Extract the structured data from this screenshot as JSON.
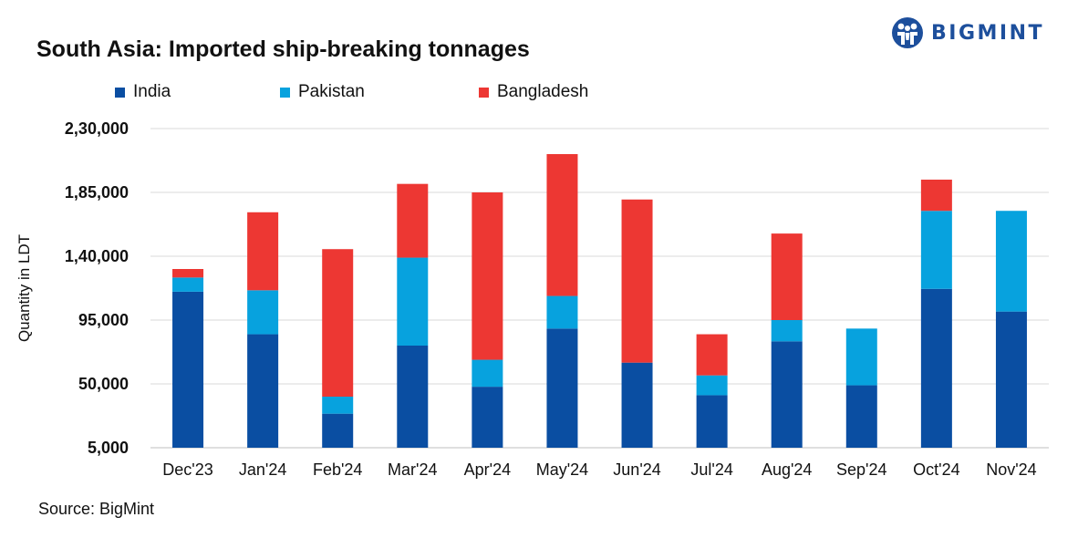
{
  "brand": {
    "name": "BIGMINT",
    "color": "#1d4f9c"
  },
  "source": "Source: BigMint",
  "chart_data": {
    "type": "bar",
    "stacked": true,
    "title": "South Asia: Imported ship-breaking tonnages",
    "xlabel": "",
    "ylabel": "Quantity in LDT",
    "ylim": [
      5000,
      230000
    ],
    "yticks": [
      5000,
      50000,
      95000,
      140000,
      185000,
      230000
    ],
    "ytick_labels": [
      "5,000",
      "50,000",
      "95,000",
      "1,40,000",
      "1,85,000",
      "2,30,000"
    ],
    "grid": true,
    "legend_position": "top",
    "categories": [
      "Dec'23",
      "Jan'24",
      "Feb'24",
      "Mar'24",
      "Apr'24",
      "May'24",
      "Jun'24",
      "Jul'24",
      "Aug'24",
      "Sep'24",
      "Oct'24",
      "Nov'24"
    ],
    "series": [
      {
        "name": "India",
        "color": "#0a4ea2",
        "values": [
          110000,
          80000,
          24000,
          72000,
          43000,
          84000,
          60000,
          37000,
          75000,
          44000,
          112000,
          96000
        ]
      },
      {
        "name": "Pakistan",
        "color": "#07a2de",
        "values": [
          10000,
          31000,
          12000,
          62000,
          19000,
          23000,
          0,
          14000,
          15000,
          40000,
          55000,
          71000
        ]
      },
      {
        "name": "Bangladesh",
        "color": "#ed3733",
        "values": [
          6000,
          55000,
          104000,
          52000,
          118000,
          100000,
          115000,
          29000,
          61000,
          0,
          22000,
          0
        ]
      }
    ]
  }
}
